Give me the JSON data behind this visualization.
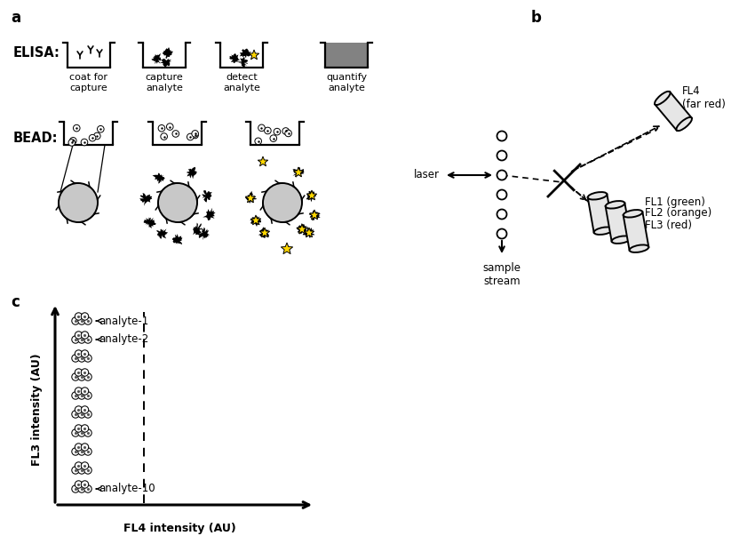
{
  "bg_color": "#ffffff",
  "text_color": "#000000",
  "gray_fill": "#808080",
  "bead_gray": "#c8c8c8",
  "label_a": "a",
  "label_b": "b",
  "label_c": "c",
  "elisa_label": "ELISA:",
  "bead_label": "BEAD:",
  "elisa_steps": [
    "coat for\ncapture",
    "capture\nanalyte",
    "detect\nanalyte",
    "quantify\nanalyte"
  ],
  "laser_label": "laser",
  "sample_stream_label": "sample\nstream",
  "fl_labels": [
    "FL1 (green)",
    "FL2 (orange)",
    "FL3 (red)",
    "FL4\n(far red)"
  ],
  "fl3_axis": "FL3 intensity (AU)",
  "fl4_axis": "FL4 intensity (AU)",
  "analyte_labels": [
    "analyte-1",
    "analyte-2",
    "analyte-10"
  ],
  "num_beads": 10
}
